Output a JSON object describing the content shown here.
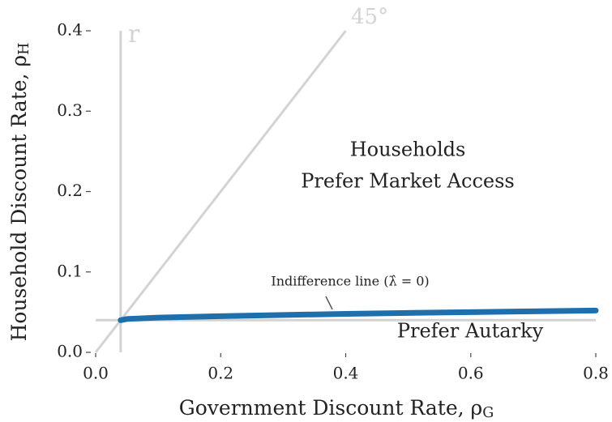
{
  "chart_data": {
    "type": "line",
    "xlabel": {
      "text": "Government Discount Rate, ρ",
      "sub": "G"
    },
    "ylabel": {
      "text": "Household Discount Rate, ρ",
      "sub": "H"
    },
    "xlim": [
      0,
      0.8
    ],
    "ylim": [
      0,
      0.4
    ],
    "xticks": [
      {
        "value": 0,
        "label": "0.0"
      },
      0.2,
      0.4,
      0.6,
      0.8
    ],
    "yticks": [
      {
        "value": 0,
        "label": "0.0"
      },
      0.1,
      0.2,
      0.3,
      0.4
    ],
    "series": [
      {
        "name": "r",
        "color": "#d3d3d3",
        "x": [
          0.04,
          0.04
        ],
        "values": [
          0,
          0.4
        ]
      },
      {
        "color": "#d3d3d3",
        "x": [
          0,
          0.8
        ],
        "values": [
          0.04,
          0.04
        ]
      },
      {
        "name": "45°",
        "color": "#d3d3d3",
        "x": [
          0,
          0.4
        ],
        "values": [
          0,
          0.4
        ]
      },
      {
        "name": "Indifference line (λ̂ = 0)",
        "color": "#1f6fad",
        "x": [
          0.04,
          0.05,
          0.1,
          0.2,
          0.3,
          0.4,
          0.5,
          0.6,
          0.7,
          0.8
        ],
        "values": [
          0.04,
          0.0415,
          0.0432,
          0.045,
          0.0465,
          0.0478,
          0.049,
          0.05,
          0.051,
          0.052
        ]
      }
    ],
    "annotations": [
      "Households",
      "Prefer Market Access",
      "Prefer Autarky"
    ]
  }
}
